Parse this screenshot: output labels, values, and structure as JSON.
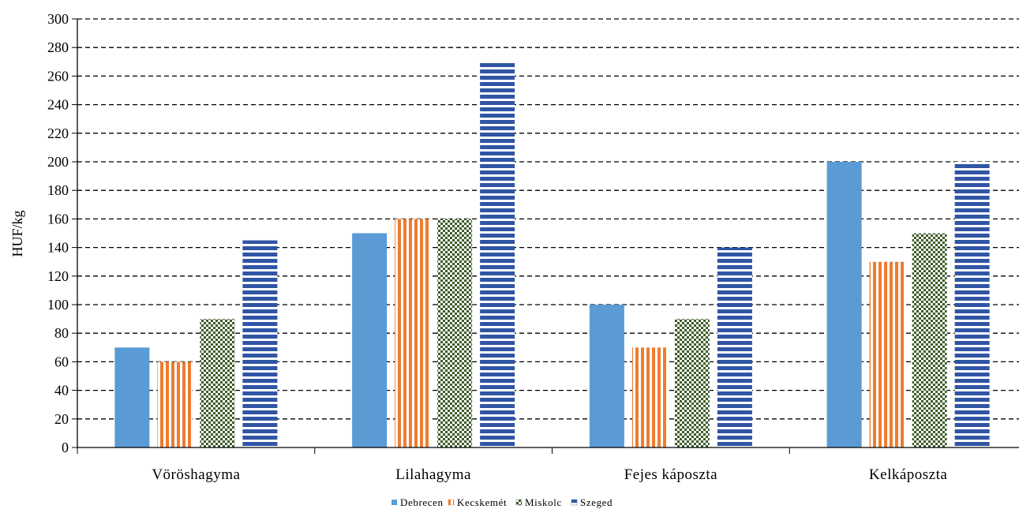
{
  "chart_data": {
    "type": "bar",
    "title": "",
    "xlabel": "",
    "ylabel": "HUF/kg",
    "ylim": [
      0,
      300
    ],
    "ytick_step": 20,
    "yticks": [
      "0",
      "20",
      "40",
      "60",
      "80",
      "100",
      "120",
      "140",
      "160",
      "180",
      "200",
      "220",
      "240",
      "260",
      "280",
      "300"
    ],
    "grid": "horizontal dashed",
    "legend_position": "bottom-center",
    "categories": [
      "Vöröshagyma",
      "Lilahagyma",
      "Fejes káposzta",
      "Kelkáposzta"
    ],
    "series": [
      {
        "name": "Debrecen",
        "values": [
          70,
          150,
          100,
          200
        ],
        "color": "#5b9bd5",
        "pattern": "solid"
      },
      {
        "name": "Kecskemét",
        "values": [
          60,
          160,
          70,
          130
        ],
        "color": "#ed7d31",
        "pattern": "vertical-stripes"
      },
      {
        "name": "Miskolc",
        "values": [
          90,
          160,
          90,
          150
        ],
        "color": "#3d5c2a",
        "pattern": "checkerboard"
      },
      {
        "name": "Szeged",
        "values": [
          145,
          270,
          140,
          200
        ],
        "color": "#2f55a4",
        "pattern": "horizontal-stripes"
      }
    ]
  }
}
